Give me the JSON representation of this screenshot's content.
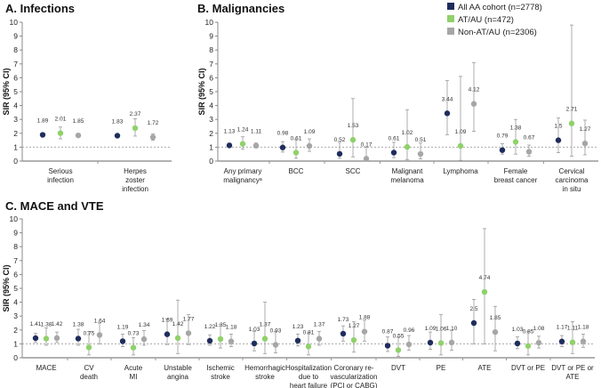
{
  "chart_data": {
    "type": "scatter",
    "ylabel": "SIR (95% CI)",
    "ylim": [
      0,
      10
    ],
    "reference_line": 1,
    "legend": {
      "placement": "top-right",
      "entries": [
        {
          "name": "All AA cohort (n=2778)",
          "color": "#1f2d5c"
        },
        {
          "name": "AT/AU (n=472)",
          "color": "#8fd16a"
        },
        {
          "name": "Non-AT/AU (n=2306)",
          "color": "#a6a6a6"
        }
      ]
    },
    "panels": [
      {
        "title": "A. Infections",
        "categories": [
          {
            "lines": [
              "Serious",
              "infection"
            ],
            "sir": [
              1.89,
              2.01,
              1.85
            ],
            "lo": [
              1.8,
              1.6,
              1.75
            ],
            "hi": [
              2.0,
              2.45,
              1.95
            ],
            "labels": [
              "1.89",
              "2.01",
              "1.85"
            ]
          },
          {
            "lines": [
              "Herpes",
              "zoster",
              "infection"
            ],
            "sir": [
              1.83,
              2.37,
              1.72
            ],
            "lo": [
              1.7,
              1.8,
              1.5
            ],
            "hi": [
              1.95,
              3.05,
              1.95
            ],
            "labels": [
              "1.83",
              "2.37",
              "1.72"
            ]
          }
        ]
      },
      {
        "title": "B. Malignancies",
        "categories": [
          {
            "lines": [
              "Any primary",
              "malignancyᵃ"
            ],
            "sir": [
              1.13,
              1.24,
              1.11
            ],
            "lo": [
              1.0,
              0.85,
              0.95
            ],
            "hi": [
              1.27,
              1.75,
              1.3
            ],
            "labels": [
              "1.13",
              "1.24",
              "1.11"
            ]
          },
          {
            "lines": [
              "BCC"
            ],
            "sir": [
              0.98,
              0.61,
              1.09
            ],
            "lo": [
              0.65,
              0.2,
              0.7
            ],
            "hi": [
              1.4,
              1.55,
              1.6
            ],
            "labels": [
              "0.98",
              "0.61",
              "1.09"
            ]
          },
          {
            "lines": [
              "SCC"
            ],
            "sir": [
              0.52,
              1.53,
              0.17
            ],
            "lo": [
              0.2,
              0.3,
              0.0
            ],
            "hi": [
              1.35,
              4.5,
              1.0
            ],
            "labels": [
              "0.52",
              "1.53",
              "0.17"
            ]
          },
          {
            "lines": [
              "Malignant",
              "melanoma"
            ],
            "sir": [
              0.61,
              1.02,
              0.51
            ],
            "lo": [
              0.25,
              0.1,
              0.15
            ],
            "hi": [
              1.35,
              3.7,
              1.3
            ],
            "labels": [
              "0.61",
              "1.02",
              "0.51"
            ]
          },
          {
            "lines": [
              "Lymphoma"
            ],
            "sir": [
              3.44,
              1.09,
              4.12
            ],
            "lo": [
              1.9,
              0.05,
              2.15
            ],
            "hi": [
              5.8,
              6.1,
              7.1
            ],
            "labels": [
              "3.44",
              "1.09",
              "4.12"
            ]
          },
          {
            "lines": [
              "Female",
              "breast cancer"
            ],
            "sir": [
              0.79,
              1.38,
              0.67
            ],
            "lo": [
              0.5,
              0.5,
              0.35
            ],
            "hi": [
              1.25,
              3.0,
              1.15
            ],
            "labels": [
              "0.79",
              "1.38",
              "0.67"
            ]
          },
          {
            "lines": [
              "Cervical",
              "carcinoma",
              "in situ"
            ],
            "sir": [
              1.5,
              2.71,
              1.27
            ],
            "lo": [
              0.6,
              0.35,
              0.45
            ],
            "hi": [
              3.1,
              9.8,
              2.95
            ],
            "labels": [
              "1.5",
              "2.71",
              "1.27"
            ]
          }
        ]
      },
      {
        "title": "C. MACE and VTE",
        "categories": [
          {
            "lines": [
              "MACE"
            ],
            "sir": [
              1.41,
              1.38,
              1.42
            ],
            "lo": [
              1.1,
              0.9,
              1.1
            ],
            "hi": [
              1.75,
              2.15,
              1.85
            ],
            "labels": [
              "1.41",
              "1.38",
              "1.42"
            ]
          },
          {
            "lines": [
              "CV",
              "death"
            ],
            "sir": [
              1.38,
              0.75,
              1.64
            ],
            "lo": [
              0.9,
              0.2,
              1.0
            ],
            "hi": [
              2.05,
              1.9,
              2.5
            ],
            "labels": [
              "1.38",
              "0.75",
              "1.64"
            ]
          },
          {
            "lines": [
              "Acute",
              "MI"
            ],
            "sir": [
              1.19,
              0.73,
              1.34
            ],
            "lo": [
              0.8,
              0.2,
              0.9
            ],
            "hi": [
              1.7,
              1.45,
              1.95
            ],
            "labels": [
              "1.19",
              "0.73",
              "1.34"
            ]
          },
          {
            "lines": [
              "Unstable",
              "angina"
            ],
            "sir": [
              1.69,
              1.42,
              1.77
            ],
            "lo": [
              0.95,
              0.3,
              0.95
            ],
            "hi": [
              2.8,
              4.15,
              3.1
            ],
            "labels": [
              "1.69",
              "1.42",
              "1.77"
            ]
          },
          {
            "lines": [
              "Ischemic",
              "stroke"
            ],
            "sir": [
              1.22,
              1.35,
              1.18
            ],
            "lo": [
              0.9,
              0.7,
              0.8
            ],
            "hi": [
              1.65,
              2.4,
              1.7
            ],
            "labels": [
              "1.22",
              "1.35",
              "1.18"
            ]
          },
          {
            "lines": [
              "Hemorrhagic",
              "stroke"
            ],
            "sir": [
              1.03,
              1.37,
              0.93
            ],
            "lo": [
              0.5,
              0.3,
              0.35
            ],
            "hi": [
              1.9,
              4.0,
              1.9
            ],
            "labels": [
              "1.03",
              "1.37",
              "0.93"
            ]
          },
          {
            "lines": [
              "Hospitalization",
              "due to",
              "heart failure"
            ],
            "sir": [
              1.23,
              0.81,
              1.37
            ],
            "lo": [
              0.85,
              0.2,
              0.9
            ],
            "hi": [
              1.7,
              1.8,
              1.9
            ],
            "labels": [
              "1.23",
              "0.81",
              "1.37"
            ]
          },
          {
            "lines": [
              "Coronary re-",
              "vascularization",
              "(PCI or CABG)"
            ],
            "sir": [
              1.73,
              1.27,
              1.88
            ],
            "lo": [
              1.2,
              0.4,
              1.2
            ],
            "hi": [
              2.3,
              2.6,
              2.7
            ],
            "labels": [
              "1.73",
              "1.27",
              "1.88"
            ]
          },
          {
            "lines": [
              "DVT"
            ],
            "sir": [
              0.87,
              0.55,
              0.96
            ],
            "lo": [
              0.45,
              0.1,
              0.55
            ],
            "hi": [
              1.5,
              1.5,
              1.6
            ],
            "labels": [
              "0.87",
              "0.55",
              "0.96"
            ]
          },
          {
            "lines": [
              "PE"
            ],
            "sir": [
              1.09,
              1.06,
              1.1
            ],
            "lo": [
              0.6,
              0.2,
              0.55
            ],
            "hi": [
              1.85,
              3.1,
              1.95
            ],
            "labels": [
              "1.09",
              "1.06",
              "1.10"
            ]
          },
          {
            "lines": [
              "ATE"
            ],
            "sir": [
              2.5,
              4.74,
              1.85
            ],
            "lo": [
              1.0,
              1.0,
              0.5
            ],
            "hi": [
              4.2,
              9.3,
              3.7
            ],
            "labels": [
              "2.5",
              "4.74",
              "1.85"
            ]
          },
          {
            "lines": [
              "DVT or PE"
            ],
            "sir": [
              1.03,
              0.85,
              1.08
            ],
            "lo": [
              0.65,
              0.2,
              0.7
            ],
            "hi": [
              1.5,
              1.9,
              1.55
            ],
            "labels": [
              "1.03",
              "0.85",
              "1.08"
            ]
          },
          {
            "lines": [
              "DVT or PE or",
              "ATE"
            ],
            "sir": [
              1.17,
              1.11,
              1.18
            ],
            "lo": [
              0.8,
              0.3,
              0.75
            ],
            "hi": [
              1.6,
              2.6,
              1.7
            ],
            "labels": [
              "1.17",
              "1.11",
              "1.18"
            ]
          }
        ]
      }
    ]
  }
}
